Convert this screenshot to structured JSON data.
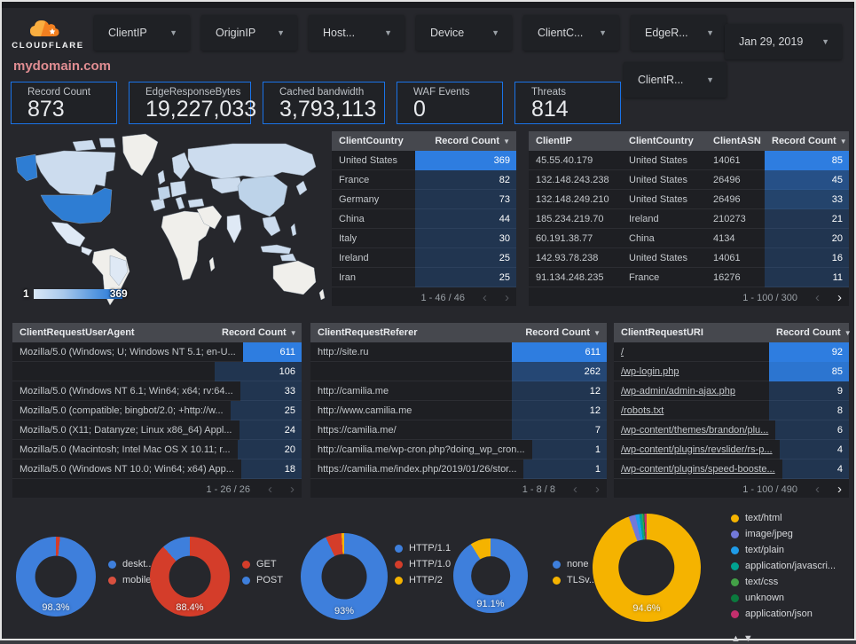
{
  "theme": {
    "accent_blue": "#1a73e8",
    "bar_blue": "#2e7de0",
    "title_pink": "#e08d92",
    "donut_blue": "#3e7fdc",
    "donut_red": "#d43d2a",
    "donut_yellow": "#f5b300"
  },
  "topbar": {
    "brand": "CLOUDFLARE",
    "filters": [
      {
        "label": "ClientIP"
      },
      {
        "label": "OriginIP"
      },
      {
        "label": "Host..."
      },
      {
        "label": "Device"
      },
      {
        "label": "ClientC..."
      },
      {
        "label": "EdgeR..."
      }
    ],
    "date_filter": "Jan 29, 2019",
    "secondary_filter": "ClientR..."
  },
  "title": "mydomain.com",
  "scorecards": [
    {
      "label": "Record Count",
      "value": "873"
    },
    {
      "label": "EdgeResponseBytes",
      "value": "19,227,033"
    },
    {
      "label": "Cached bandwidth",
      "value": "3,793,113"
    },
    {
      "label": "WAF Events",
      "value": "0"
    },
    {
      "label": "Threats",
      "value": "814"
    }
  ],
  "map": {
    "scale_min": "1",
    "scale_max": "369"
  },
  "tables": {
    "country": {
      "columns": [
        {
          "label": "ClientCountry"
        },
        {
          "label": "Record Count",
          "sort": true,
          "bar": true
        }
      ],
      "rows": [
        [
          "United States",
          369
        ],
        [
          "France",
          82
        ],
        [
          "Germany",
          73
        ],
        [
          "China",
          44
        ],
        [
          "Italy",
          30
        ],
        [
          "Ireland",
          25
        ],
        [
          "Iran",
          25
        ]
      ],
      "max": 369,
      "pagination": {
        "range": "1 - 46 / 46",
        "prev": false,
        "next": false
      }
    },
    "client_ip": {
      "columns": [
        {
          "label": "ClientIP"
        },
        {
          "label": "ClientCountry"
        },
        {
          "label": "ClientASN"
        },
        {
          "label": "Record Count",
          "sort": true,
          "bar": true
        }
      ],
      "rows": [
        [
          "45.55.40.179",
          "United States",
          "14061",
          85
        ],
        [
          "132.148.243.238",
          "United States",
          "26496",
          45
        ],
        [
          "132.148.249.210",
          "United States",
          "26496",
          33
        ],
        [
          "185.234.219.70",
          "Ireland",
          "210273",
          21
        ],
        [
          "60.191.38.77",
          "China",
          "4134",
          20
        ],
        [
          "142.93.78.238",
          "United States",
          "14061",
          16
        ],
        [
          "91.134.248.235",
          "France",
          "16276",
          11
        ]
      ],
      "max": 85,
      "pagination": {
        "range": "1 - 100 / 300",
        "prev": false,
        "next": true
      }
    },
    "user_agent": {
      "columns": [
        {
          "label": "ClientRequestUserAgent"
        },
        {
          "label": "Record Count",
          "sort": true,
          "bar": true
        }
      ],
      "rows": [
        [
          "Mozilla/5.0 (Windows; U; Windows NT 5.1; en-U...",
          611
        ],
        [
          "",
          106
        ],
        [
          "Mozilla/5.0 (Windows NT 6.1; Win64; x64; rv:64...",
          33
        ],
        [
          "Mozilla/5.0 (compatible; bingbot/2.0; +http://w...",
          25
        ],
        [
          "Mozilla/5.0 (X11; Datanyze; Linux x86_64) Appl...",
          24
        ],
        [
          "Mozilla/5.0 (Macintosh; Intel Mac OS X 10.11; r...",
          20
        ],
        [
          "Mozilla/5.0 (Windows NT 10.0; Win64; x64) App...",
          18
        ]
      ],
      "max": 611,
      "pagination": {
        "range": "1 - 26 / 26",
        "prev": false,
        "next": false
      }
    },
    "referer": {
      "columns": [
        {
          "label": "ClientRequestReferer"
        },
        {
          "label": "Record Count",
          "sort": true,
          "bar": true
        }
      ],
      "rows": [
        [
          "http://site.ru",
          611
        ],
        [
          "",
          262
        ],
        [
          "http://camilia.me",
          12
        ],
        [
          "http://www.camilia.me",
          12
        ],
        [
          "https://camilia.me/",
          7
        ],
        [
          "http://camilia.me/wp-cron.php?doing_wp_cron...",
          1
        ],
        [
          "https://camilia.me/index.php/2019/01/26/stor...",
          1
        ]
      ],
      "max": 611,
      "pagination": {
        "range": "1 - 8 / 8",
        "prev": false,
        "next": false
      }
    },
    "uri": {
      "columns": [
        {
          "label": "ClientRequestURI"
        },
        {
          "label": "Record Count",
          "sort": true,
          "bar": true
        }
      ],
      "links": true,
      "rows": [
        [
          "/",
          92
        ],
        [
          "/wp-login.php",
          85
        ],
        [
          "/wp-admin/admin-ajax.php",
          9
        ],
        [
          "/robots.txt",
          8
        ],
        [
          "/wp-content/themes/brandon/plu...",
          6
        ],
        [
          "/wp-content/plugins/revslider/rs-p...",
          4
        ],
        [
          "/wp-content/plugins/speed-booste...",
          4
        ]
      ],
      "max": 92,
      "pagination": {
        "range": "1 - 100 / 490",
        "prev": false,
        "next": true
      }
    }
  },
  "chart_data": [
    {
      "type": "pie",
      "name": "device-category",
      "center_label": "98.3%",
      "slices": [
        {
          "label": "mobile",
          "pct": 1.7,
          "color": "#d43d2a"
        },
        {
          "label": "desktop",
          "pct": 98.3,
          "color": "#3e7fdc"
        }
      ],
      "legend": [
        {
          "label": "deskt...",
          "color": "#3e7fdc"
        },
        {
          "label": "mobile",
          "color": "#d9503f"
        }
      ]
    },
    {
      "type": "pie",
      "name": "request-method",
      "center_label": "88.4%",
      "slices": [
        {
          "label": "GET",
          "pct": 88.4,
          "color": "#d43d2a"
        },
        {
          "label": "POST",
          "pct": 11.6,
          "color": "#3e7fdc"
        }
      ],
      "legend": [
        {
          "label": "GET",
          "color": "#d43d2a"
        },
        {
          "label": "POST",
          "color": "#3e7fdc"
        }
      ]
    },
    {
      "type": "pie",
      "name": "http-version",
      "center_label": "93%",
      "slices": [
        {
          "label": "HTTP/1.1",
          "pct": 93,
          "color": "#3e7fdc"
        },
        {
          "label": "HTTP/1.0",
          "pct": 6,
          "color": "#d43d2a"
        },
        {
          "label": "HTTP/2",
          "pct": 1,
          "color": "#f5b300"
        }
      ],
      "legend": [
        {
          "label": "HTTP/1.1",
          "color": "#3e7fdc"
        },
        {
          "label": "HTTP/1.0",
          "color": "#d43d2a"
        },
        {
          "label": "HTTP/2",
          "color": "#f5b300"
        }
      ]
    },
    {
      "type": "pie",
      "name": "tls-version",
      "center_label": "91.1%",
      "slices": [
        {
          "label": "none",
          "pct": 91.1,
          "color": "#3e7fdc"
        },
        {
          "label": "TLSv...",
          "pct": 8.9,
          "color": "#f5b300"
        }
      ],
      "legend": [
        {
          "label": "none",
          "color": "#3e7fdc"
        },
        {
          "label": "TLSv...",
          "color": "#f5b300"
        }
      ]
    },
    {
      "type": "pie",
      "name": "content-type",
      "center_label": "94.6%",
      "slices": [
        {
          "label": "text/html",
          "pct": 94.6,
          "color": "#f5b300"
        },
        {
          "label": "image/jpeg",
          "pct": 2.0,
          "color": "#7279d9"
        },
        {
          "label": "text/plain",
          "pct": 1.2,
          "color": "#1f9ce9"
        },
        {
          "label": "application/javascri...",
          "pct": 0.8,
          "color": "#00a291"
        },
        {
          "label": "text/css",
          "pct": 0.4,
          "color": "#43a047"
        },
        {
          "label": "unknown",
          "pct": 0.3,
          "color": "#0b7a3e"
        },
        {
          "label": "application/json",
          "pct": 0.7,
          "color": "#c32f6d"
        }
      ],
      "legend": [
        {
          "label": "text/html",
          "color": "#f5b300"
        },
        {
          "label": "image/jpeg",
          "color": "#7279d9"
        },
        {
          "label": "text/plain",
          "color": "#1f9ce9"
        },
        {
          "label": "application/javascri...",
          "color": "#00a291"
        },
        {
          "label": "text/css",
          "color": "#43a047"
        },
        {
          "label": "unknown",
          "color": "#0b7a3e"
        },
        {
          "label": "application/json",
          "color": "#c32f6d"
        }
      ],
      "pager_icons": "▲▼"
    }
  ]
}
